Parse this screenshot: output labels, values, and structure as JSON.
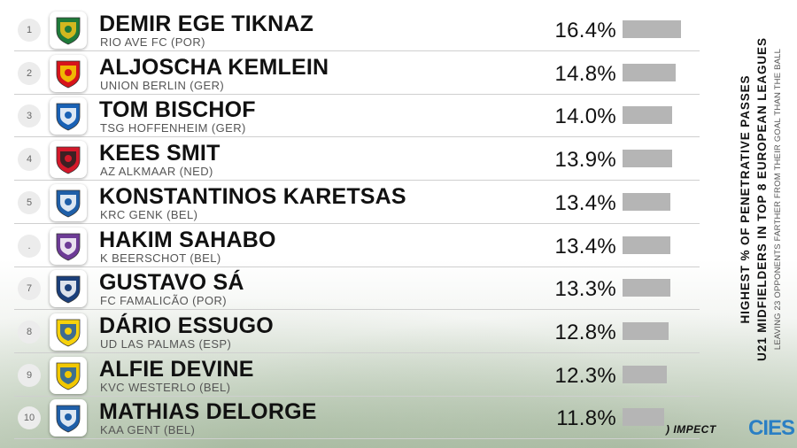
{
  "title_lines": [
    "HIGHEST % OF PENETRATIVE PASSES",
    "U21 MIDFIELDERS IN TOP 8 EUROPEAN LEAGUES",
    "LEAVING 23 OPPONENTS FARTHER FROM THEIR GOAL THAN THE BALL"
  ],
  "logos": {
    "impect": "IMPECT",
    "cies": "CIES",
    "impect_mark": ")"
  },
  "chart_data": {
    "type": "bar",
    "orientation": "horizontal",
    "value_unit": "%",
    "xlim": [
      0,
      16.4
    ],
    "grid": false,
    "rows": [
      {
        "rank": "1",
        "player": "DEMIR EGE TIKNAZ",
        "club": "RIO AVE FC (POR)",
        "value": 16.4,
        "label": "16.4%",
        "crest": "rio-ave-crest",
        "crest_colors": [
          "#1f7a3a",
          "#f2c21b"
        ]
      },
      {
        "rank": "2",
        "player": "ALJOSCHA KEMLEIN",
        "club": "UNION BERLIN (GER)",
        "value": 14.8,
        "label": "14.8%",
        "crest": "union-berlin-crest",
        "crest_colors": [
          "#d7141a",
          "#f5d300"
        ]
      },
      {
        "rank": "3",
        "player": "TOM BISCHOF",
        "club": "TSG HOFFENHEIM (GER)",
        "value": 14.0,
        "label": "14.0%",
        "crest": "hoffenheim-crest",
        "crest_colors": [
          "#1961b5",
          "#ffffff"
        ]
      },
      {
        "rank": "4",
        "player": "KEES SMIT",
        "club": "AZ ALKMAAR (NED)",
        "value": 13.9,
        "label": "13.9%",
        "crest": "az-crest",
        "crest_colors": [
          "#d3182a",
          "#222222"
        ]
      },
      {
        "rank": "5",
        "player": "KONSTANTINOS KARETSAS",
        "club": "KRC GENK (BEL)",
        "value": 13.4,
        "label": "13.4%",
        "crest": "genk-crest",
        "crest_colors": [
          "#1f5fa8",
          "#ffffff"
        ]
      },
      {
        "rank": ".",
        "player": "HAKIM SAHABO",
        "club": "K BEERSCHOT (BEL)",
        "value": 13.4,
        "label": "13.4%",
        "crest": "beerschot-crest",
        "crest_colors": [
          "#6d3b96",
          "#ffffff"
        ]
      },
      {
        "rank": "7",
        "player": "GUSTAVO SÁ",
        "club": "FC FAMALICÃO (POR)",
        "value": 13.3,
        "label": "13.3%",
        "crest": "famalicao-crest",
        "crest_colors": [
          "#1b3f7a",
          "#ffffff"
        ]
      },
      {
        "rank": "8",
        "player": "DÁRIO ESSUGO",
        "club": "UD LAS PALMAS (ESP)",
        "value": 12.8,
        "label": "12.8%",
        "crest": "las-palmas-crest",
        "crest_colors": [
          "#f7d20d",
          "#1f5aa8"
        ]
      },
      {
        "rank": "9",
        "player": "ALFIE DEVINE",
        "club": "KVC WESTERLO (BEL)",
        "value": 12.3,
        "label": "12.3%",
        "crest": "westerlo-crest",
        "crest_colors": [
          "#f2c800",
          "#1f5fa8"
        ]
      },
      {
        "rank": "10",
        "player": "MATHIAS DELORGE",
        "club": "KAA GENT (BEL)",
        "value": 11.8,
        "label": "11.8%",
        "crest": "gent-crest",
        "crest_colors": [
          "#1f5fa8",
          "#ffffff"
        ]
      }
    ]
  }
}
